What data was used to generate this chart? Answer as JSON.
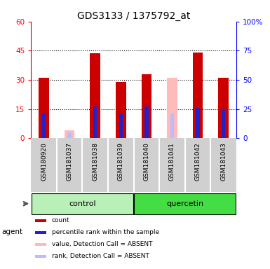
{
  "title": "GDS3133 / 1375792_at",
  "samples": [
    "GSM180920",
    "GSM181037",
    "GSM181038",
    "GSM181039",
    "GSM181040",
    "GSM181041",
    "GSM181042",
    "GSM181043"
  ],
  "red_count": [
    31,
    0,
    43.5,
    29,
    33,
    0,
    44,
    31
  ],
  "blue_rank": [
    22,
    0,
    27,
    21,
    27,
    0,
    26,
    24
  ],
  "pink_value_absent": [
    0,
    4,
    0,
    0,
    0,
    31,
    0,
    0
  ],
  "lavender_rank_absent": [
    0,
    5,
    0,
    0,
    0,
    21,
    0,
    0
  ],
  "ylim_left": [
    0,
    60
  ],
  "ylim_right": [
    0,
    100
  ],
  "yticks_left": [
    0,
    15,
    30,
    45,
    60
  ],
  "yticks_right": [
    0,
    25,
    50,
    75,
    100
  ],
  "ytick_labels_left": [
    "0",
    "15",
    "30",
    "45",
    "60"
  ],
  "ytick_labels_right": [
    "0",
    "25",
    "50",
    "75",
    "100%"
  ],
  "grid_values": [
    15,
    30,
    45
  ],
  "color_red": "#cc0000",
  "color_blue": "#2222cc",
  "color_pink": "#ffbbbb",
  "color_lavender": "#bbbbff",
  "color_bg_label": "#d0d0d0",
  "color_control_light": "#b8f0b8",
  "color_quercetin_green": "#44dd44",
  "bar_width": 0.4,
  "blue_bar_width": 0.15,
  "legend_items": [
    "count",
    "percentile rank within the sample",
    "value, Detection Call = ABSENT",
    "rank, Detection Call = ABSENT"
  ]
}
